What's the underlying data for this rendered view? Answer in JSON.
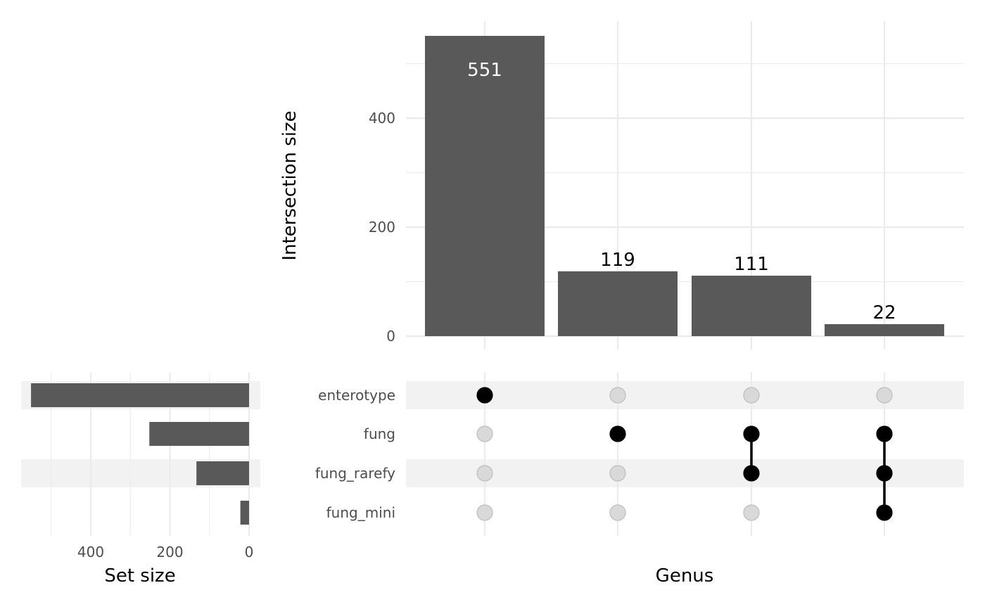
{
  "chart_data": {
    "type": "bar",
    "xlabel": "Genus",
    "intersections": {
      "ylabel": "Intersection size",
      "ylim": [
        0,
        580
      ],
      "yticks": [
        0,
        200,
        400
      ],
      "values": [
        551,
        119,
        111,
        22
      ],
      "labels": [
        "551",
        "119",
        "111",
        "22"
      ],
      "members": [
        [
          "enterotype"
        ],
        [
          "fung"
        ],
        [
          "fung",
          "fung_rarefy"
        ],
        [
          "fung",
          "fung_rarefy",
          "fung_mini"
        ]
      ]
    },
    "sets": {
      "names": [
        "enterotype",
        "fung",
        "fung_rarefy",
        "fung_mini"
      ],
      "xlabel": "Set size",
      "sizes": [
        551,
        252,
        133,
        22
      ],
      "xlim": [
        0,
        570
      ],
      "xticks": [
        400,
        200,
        0
      ],
      "reversed": true
    },
    "colors": {
      "bar": "#595959",
      "dot_active": "#000000",
      "dot_inactive": "#d9d9d9",
      "dot_inactive_stroke": "#bdbdbd",
      "stripe": "#f2f2f2",
      "grid": "#ebebeb",
      "label_inside": "#ffffff",
      "label_outside": "#000000"
    },
    "grid": true
  }
}
